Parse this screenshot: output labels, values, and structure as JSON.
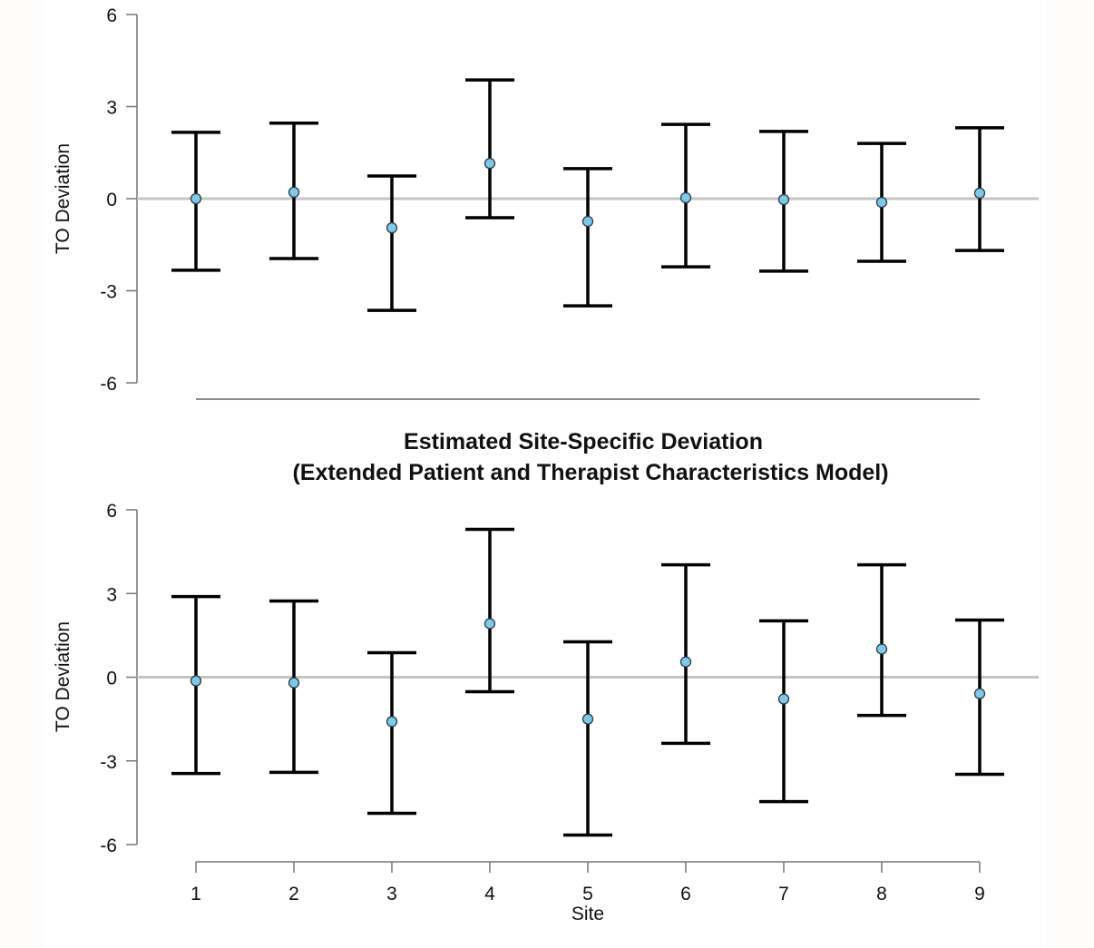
{
  "colors": {
    "point_fill": "#7ec8e8",
    "point_stroke": "#2b3a44",
    "errorbar": "#000000",
    "reference_line": "#c4c4c4",
    "axis": "#777777"
  },
  "chart_data": [
    {
      "type": "errorbar",
      "title": "",
      "xlabel": "",
      "ylabel": "TO Deviation",
      "ylim": [
        -6,
        6
      ],
      "yticks": [
        "6",
        "3",
        "0",
        "-3",
        "-6"
      ],
      "ytick_values": [
        6,
        3,
        0,
        -3,
        -6
      ],
      "reference_line": 0,
      "categories": [
        "1",
        "2",
        "3",
        "4",
        "5",
        "6",
        "7",
        "8",
        "9"
      ],
      "estimate": [
        0.0,
        0.21,
        -0.95,
        1.15,
        -0.74,
        0.03,
        -0.03,
        -0.12,
        0.18
      ],
      "lower": [
        -2.33,
        -1.95,
        -3.64,
        -0.62,
        -3.49,
        -2.22,
        -2.36,
        -2.04,
        -1.69
      ],
      "upper": [
        2.16,
        2.46,
        0.74,
        3.87,
        0.98,
        2.42,
        2.19,
        1.8,
        2.31
      ]
    },
    {
      "type": "errorbar",
      "title_lines": [
        "Estimated Site-Specific Deviation",
        "(Extended Patient and Therapist Characteristics Model)"
      ],
      "xlabel": "Site",
      "ylabel": "TO Deviation",
      "ylim": [
        -6,
        6
      ],
      "yticks": [
        "6",
        "3",
        "0",
        "-3",
        "-6"
      ],
      "ytick_values": [
        6,
        3,
        0,
        -3,
        -6
      ],
      "reference_line": 0,
      "categories": [
        "1",
        "2",
        "3",
        "4",
        "5",
        "6",
        "7",
        "8",
        "9"
      ],
      "estimate": [
        -0.13,
        -0.2,
        -1.59,
        1.92,
        -1.5,
        0.55,
        -0.78,
        1.01,
        -0.59
      ],
      "lower": [
        -3.45,
        -3.41,
        -4.88,
        -0.52,
        -5.66,
        -2.37,
        -4.46,
        -1.37,
        -3.48
      ],
      "upper": [
        2.89,
        2.73,
        0.88,
        5.3,
        1.27,
        4.03,
        2.02,
        4.03,
        2.05
      ]
    }
  ]
}
